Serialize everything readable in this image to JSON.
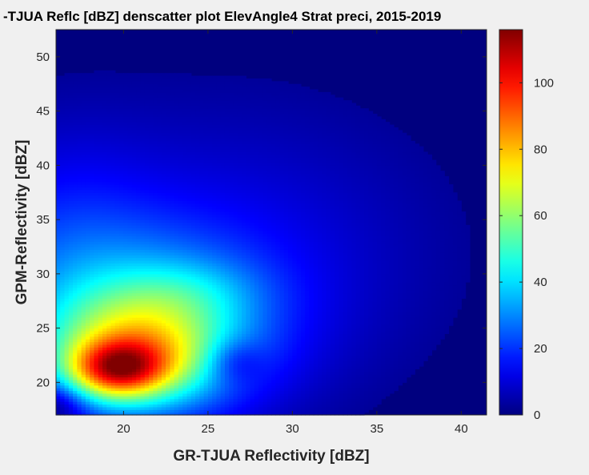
{
  "chart_data": {
    "type": "heatmap",
    "title": "-TJUA Reflc [dBZ] denscatter plot ElevAngle4 Strat preci, 2015-2019",
    "xlabel": "GR-TJUA Reflectivity [dBZ]",
    "ylabel": "GPM-Reflectivity [dBZ]",
    "xlim": [
      16,
      41.5
    ],
    "ylim": [
      17,
      52.5
    ],
    "x_ticks": [
      "20",
      "25",
      "30",
      "35",
      "40"
    ],
    "y_ticks": [
      "20",
      "25",
      "30",
      "35",
      "40",
      "45",
      "50"
    ],
    "colorbar": {
      "range": [
        0,
        116
      ],
      "ticks": [
        "0",
        "20",
        "40",
        "60",
        "80",
        "100"
      ],
      "colormap": "jet"
    },
    "x": [
      16,
      17,
      18,
      19,
      20,
      21,
      22,
      23,
      24,
      25,
      26,
      27,
      28,
      29,
      30,
      31,
      32,
      33,
      34,
      35,
      36,
      37,
      38,
      39,
      40,
      41
    ],
    "y": [
      17,
      18,
      19,
      20,
      21,
      22,
      23,
      24,
      25,
      26,
      27,
      28,
      29,
      30,
      31,
      32,
      33,
      34,
      35,
      36,
      37,
      38,
      39,
      40,
      41,
      42,
      43,
      44,
      45,
      46,
      47,
      48,
      49,
      50,
      51,
      52
    ],
    "density_peak": {
      "x": 19.5,
      "y": 21.2,
      "value": 116
    }
  },
  "colors": {
    "axes_background": "#00007f",
    "figure_background": "#f0f0f0",
    "text": "#262626"
  }
}
